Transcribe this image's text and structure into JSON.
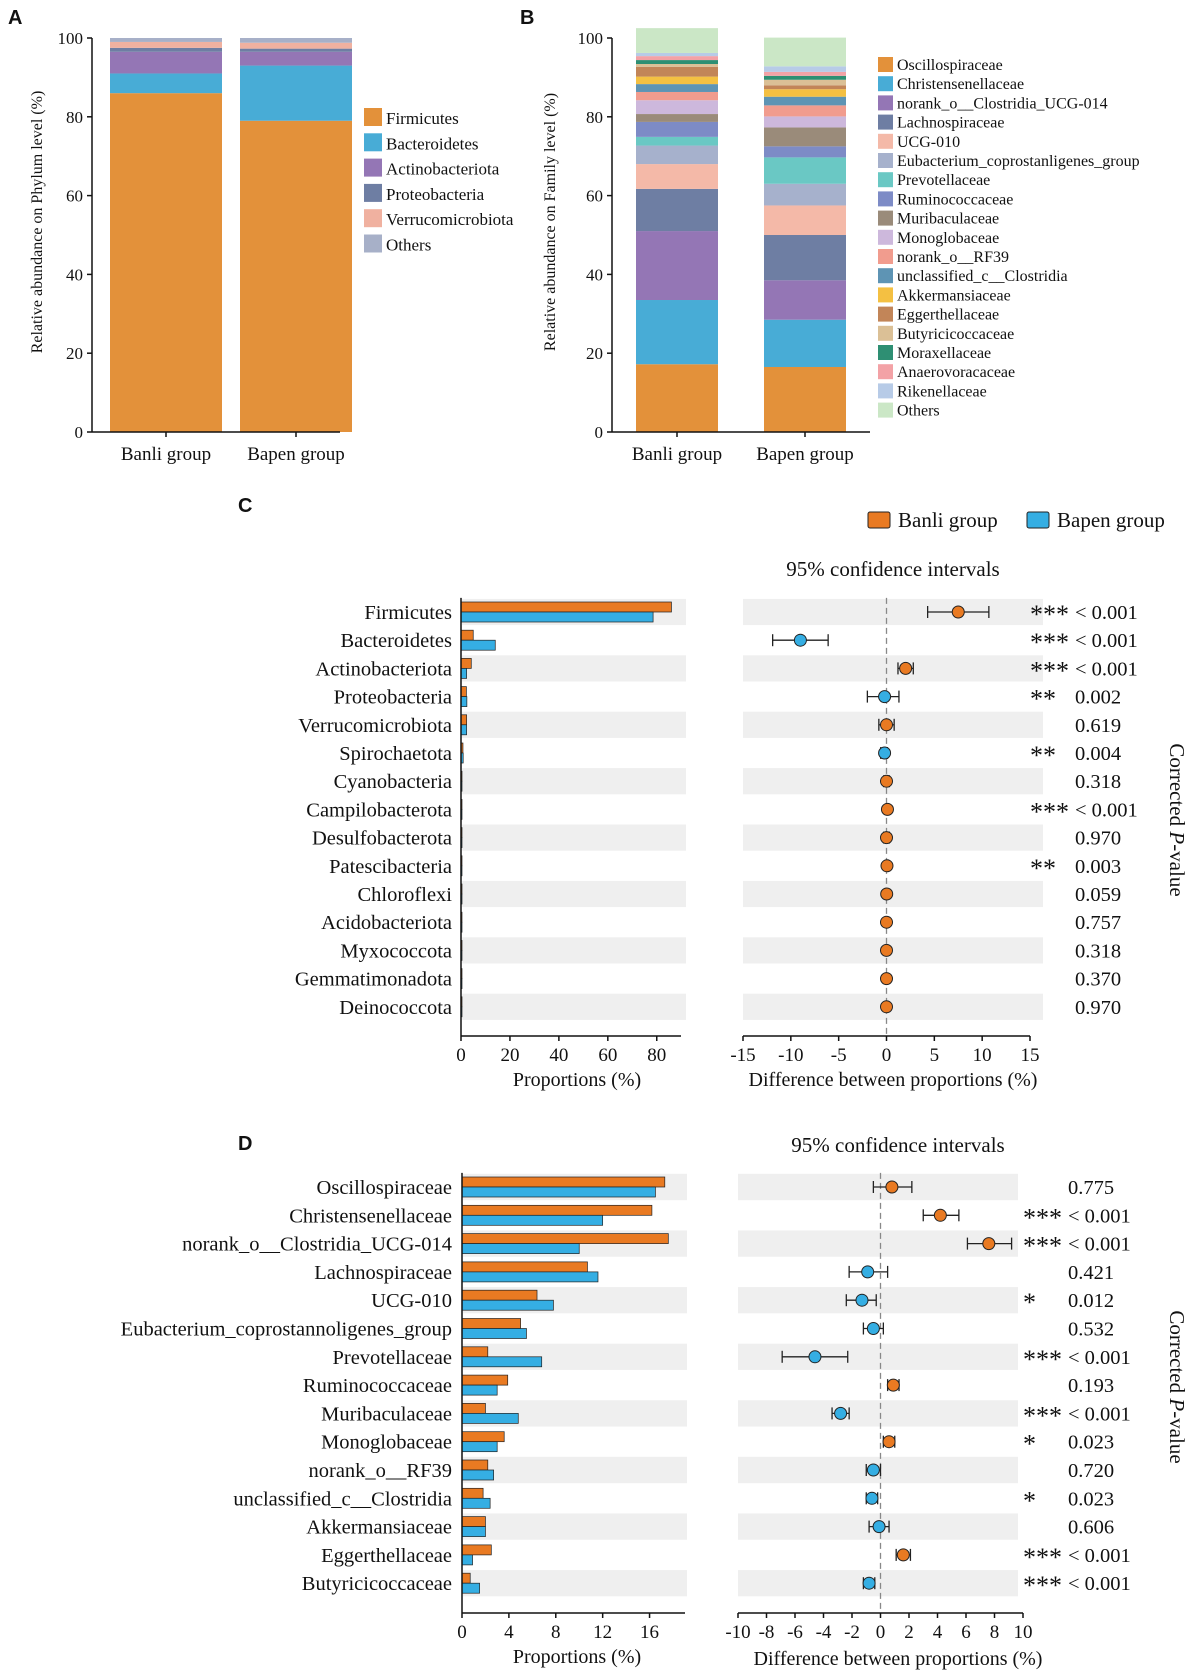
{
  "colors": {
    "banli": "#e97a22",
    "bapen": "#35aee3",
    "stars": "#e0202a",
    "band": "#efefef"
  },
  "chart_data": [
    {
      "panel": "A",
      "type": "bar",
      "stacked": true,
      "ylabel": "Relative abundance on Phylum level (%)",
      "ylim": [
        0,
        100
      ],
      "yticks": [
        "0",
        "20",
        "40",
        "60",
        "80",
        "100"
      ],
      "categories": [
        "Banli group",
        "Bapen group"
      ],
      "series": [
        {
          "name": "Firmicutes",
          "color": "#e3913a",
          "values": [
            86,
            79
          ]
        },
        {
          "name": "Bacteroidetes",
          "color": "#48acd6",
          "values": [
            5,
            14
          ]
        },
        {
          "name": "Actinobacteriota",
          "color": "#9476b5",
          "values": [
            5.5,
            3.5
          ]
        },
        {
          "name": "Proteobacteria",
          "color": "#6e7ea3",
          "values": [
            1,
            0.8
          ]
        },
        {
          "name": "Verrucomicrobiota",
          "color": "#f0b1a0",
          "values": [
            1.5,
            1.5
          ]
        },
        {
          "name": "Others",
          "color": "#a7b0c8",
          "values": [
            1,
            1.2
          ]
        }
      ],
      "legend_position": "right"
    },
    {
      "panel": "B",
      "type": "bar",
      "stacked": true,
      "ylabel": "Relative abundance on Family level (%)",
      "ylim": [
        0,
        100
      ],
      "yticks": [
        "0",
        "20",
        "40",
        "60",
        "80",
        "100"
      ],
      "categories": [
        "Banli group",
        "Bapen group"
      ],
      "series": [
        {
          "name": "Oscillospiraceae",
          "color": "#e3913a",
          "values": [
            17.2,
            16.5
          ]
        },
        {
          "name": "Christensenellaceae",
          "color": "#48acd6",
          "values": [
            16.3,
            12
          ]
        },
        {
          "name": "norank_o__Clostridia_UCG-014",
          "color": "#9476b5",
          "values": [
            17.5,
            10
          ]
        },
        {
          "name": "Lachnospiraceae",
          "color": "#6e7ea3",
          "values": [
            10.7,
            11.5
          ]
        },
        {
          "name": "UCG-010",
          "color": "#f4b9a8",
          "values": [
            6.3,
            7.5
          ]
        },
        {
          "name": "Eubacterium_coprostanligenes_group",
          "color": "#a6b1cc",
          "values": [
            4.7,
            5.5
          ]
        },
        {
          "name": "Prevotellaceae",
          "color": "#6ac8c4",
          "values": [
            2.2,
            6.7
          ]
        },
        {
          "name": "Ruminococcaceae",
          "color": "#7d8bc6",
          "values": [
            3.8,
            2.8
          ]
        },
        {
          "name": "Muribaculaceae",
          "color": "#9a8b7a",
          "values": [
            2,
            4.8
          ]
        },
        {
          "name": "Monoglobaceae",
          "color": "#cdb8dc",
          "values": [
            3.5,
            2.8
          ]
        },
        {
          "name": "norank_o__RF39",
          "color": "#f19c8e",
          "values": [
            2.1,
            2.8
          ]
        },
        {
          "name": "unclassified_c__Clostridia",
          "color": "#5e94b4",
          "values": [
            2,
            2.2
          ]
        },
        {
          "name": "Akkermansiaceae",
          "color": "#f4c042",
          "values": [
            1.9,
            1.9
          ]
        },
        {
          "name": "Eggerthellaceae",
          "color": "#c28558",
          "values": [
            2.5,
            1
          ]
        },
        {
          "name": "Butyricicoccaceae",
          "color": "#dbc096",
          "values": [
            0.7,
            1.4
          ]
        },
        {
          "name": "Moraxellaceae",
          "color": "#2e8f73",
          "values": [
            1,
            1
          ]
        },
        {
          "name": "Anaerovoracaceae",
          "color": "#f3a2a6",
          "values": [
            1,
            1
          ]
        },
        {
          "name": "Rikenellaceae",
          "color": "#b7cbe7",
          "values": [
            0.8,
            1.4
          ]
        },
        {
          "name": "Others",
          "color": "#cbe7c6",
          "values": [
            6.3,
            7.3
          ]
        }
      ],
      "legend_position": "right"
    },
    {
      "panel": "C",
      "type": "bar",
      "legend": [
        "Banli group",
        "Bapen group"
      ],
      "ci_title": "95% confidence intervals",
      "side_label": "Corrected P-value",
      "bar_xlabel": "Proportions (%)",
      "bar_xlim": [
        0,
        85
      ],
      "bar_xticks": [
        0,
        20,
        40,
        60,
        80
      ],
      "ci_xlabel": "Difference between proportions (%)",
      "ci_xlim": [
        -15,
        15
      ],
      "ci_xticks": [
        -15,
        -10,
        -5,
        0,
        5,
        10,
        15
      ],
      "taxa": [
        {
          "name": "Firmicutes",
          "banli": 86,
          "bapen": 78.5,
          "diff": 7.5,
          "lo": 4.3,
          "hi": 10.7,
          "stars": "***",
          "p": "< 0.001"
        },
        {
          "name": "Bacteroidetes",
          "banli": 5,
          "bapen": 14,
          "diff": -9,
          "lo": -11.9,
          "hi": -6.1,
          "stars": "***",
          "p": "< 0.001"
        },
        {
          "name": "Actinobacteriota",
          "banli": 4.2,
          "bapen": 2.3,
          "diff": 2,
          "lo": 1.2,
          "hi": 2.8,
          "stars": "***",
          "p": "< 0.001"
        },
        {
          "name": "Proteobacteria",
          "banli": 2.2,
          "bapen": 2.4,
          "diff": -0.2,
          "lo": -2,
          "hi": 1.3,
          "stars": "**",
          "p": "0.002"
        },
        {
          "name": "Verrucomicrobiota",
          "banli": 2.3,
          "bapen": 2.3,
          "diff": 0,
          "lo": -0.8,
          "hi": 0.8,
          "stars": "",
          "p": "0.619"
        },
        {
          "name": "Spirochaetota",
          "banli": 0.8,
          "bapen": 0.9,
          "diff": -0.2,
          "lo": -0.6,
          "hi": 0.1,
          "stars": "**",
          "p": "0.004"
        },
        {
          "name": "Cyanobacteria",
          "banli": 0.1,
          "bapen": 0.1,
          "diff": 0,
          "lo": -0.3,
          "hi": 0.3,
          "stars": "",
          "p": "0.318"
        },
        {
          "name": "Campilobacterota",
          "banli": 0.1,
          "bapen": 0.1,
          "diff": 0.1,
          "lo": -0.1,
          "hi": 0.3,
          "stars": "***",
          "p": "< 0.001"
        },
        {
          "name": "Desulfobacterota",
          "banli": 0.1,
          "bapen": 0.1,
          "diff": 0,
          "lo": -0.3,
          "hi": 0.3,
          "stars": "",
          "p": "0.970"
        },
        {
          "name": "Patescibacteria",
          "banli": 0.1,
          "bapen": 0.1,
          "diff": 0.05,
          "lo": -0.1,
          "hi": 0.2,
          "stars": "**",
          "p": "0.003"
        },
        {
          "name": "Chloroflexi",
          "banli": 0.1,
          "bapen": 0.1,
          "diff": 0.02,
          "lo": -0.1,
          "hi": 0.1,
          "stars": "",
          "p": "0.059"
        },
        {
          "name": "Acidobacteriota",
          "banli": 0.1,
          "bapen": 0.1,
          "diff": 0,
          "lo": -0.1,
          "hi": 0.1,
          "stars": "",
          "p": "0.757"
        },
        {
          "name": "Myxococcota",
          "banli": 0.1,
          "bapen": 0.1,
          "diff": 0,
          "lo": -0.1,
          "hi": 0.1,
          "stars": "",
          "p": "0.318"
        },
        {
          "name": "Gemmatimonadota",
          "banli": 0.1,
          "bapen": 0.1,
          "diff": 0,
          "lo": -0.1,
          "hi": 0.1,
          "stars": "",
          "p": "0.370"
        },
        {
          "name": "Deinococcota",
          "banli": 0.1,
          "bapen": 0.1,
          "diff": 0,
          "lo": -0.1,
          "hi": 0.1,
          "stars": "",
          "p": "0.970"
        }
      ]
    },
    {
      "panel": "D",
      "type": "bar",
      "ci_title": "95% confidence intervals",
      "side_label": "Corrected P-value",
      "bar_xlabel": "Proportions (%)",
      "bar_xlim": [
        0,
        18
      ],
      "bar_xticks": [
        0,
        4,
        8,
        12,
        16
      ],
      "ci_xlabel": "Difference between proportions (%)",
      "ci_xlim": [
        -10,
        10
      ],
      "ci_xticks": [
        -10,
        -8,
        -6,
        -4,
        -2,
        0,
        2,
        4,
        6,
        8,
        10
      ],
      "taxa": [
        {
          "name": "Oscillospiraceae",
          "banli": 17.3,
          "bapen": 16.5,
          "diff": 0.8,
          "lo": -0.5,
          "hi": 2.2,
          "stars": "",
          "p": "0.775"
        },
        {
          "name": "Christensenellaceae",
          "banli": 16.2,
          "bapen": 12,
          "diff": 4.2,
          "lo": 3,
          "hi": 5.5,
          "stars": "***",
          "p": "< 0.001"
        },
        {
          "name": "norank_o__Clostridia_UCG-014",
          "banli": 17.6,
          "bapen": 10,
          "diff": 7.6,
          "lo": 6.1,
          "hi": 9.2,
          "stars": "***",
          "p": "< 0.001"
        },
        {
          "name": "Lachnospiraceae",
          "banli": 10.7,
          "bapen": 11.6,
          "diff": -0.9,
          "lo": -2.2,
          "hi": 0.5,
          "stars": "",
          "p": "0.421"
        },
        {
          "name": "UCG-010",
          "banli": 6.4,
          "bapen": 7.8,
          "diff": -1.3,
          "lo": -2.4,
          "hi": -0.3,
          "stars": "*",
          "p": "0.012"
        },
        {
          "name": "Eubacterium_coprostannoligenes_group",
          "banli": 5,
          "bapen": 5.5,
          "diff": -0.5,
          "lo": -1.2,
          "hi": 0.2,
          "stars": "",
          "p": "0.532"
        },
        {
          "name": "Prevotellaceae",
          "banli": 2.2,
          "bapen": 6.8,
          "diff": -4.6,
          "lo": -6.9,
          "hi": -2.3,
          "stars": "***",
          "p": "< 0.001"
        },
        {
          "name": "Ruminococcaceae",
          "banli": 3.9,
          "bapen": 3,
          "diff": 0.9,
          "lo": 0.5,
          "hi": 1.3,
          "stars": "",
          "p": "0.193"
        },
        {
          "name": "Muribaculaceae",
          "banli": 2,
          "bapen": 4.8,
          "diff": -2.8,
          "lo": -3.4,
          "hi": -2.2,
          "stars": "***",
          "p": "< 0.001"
        },
        {
          "name": "Monoglobaceae",
          "banli": 3.6,
          "bapen": 3,
          "diff": 0.6,
          "lo": 0.2,
          "hi": 1,
          "stars": "*",
          "p": "0.023"
        },
        {
          "name": "norank_o__RF39",
          "banli": 2.2,
          "bapen": 2.7,
          "diff": -0.5,
          "lo": -1,
          "hi": 0,
          "stars": "",
          "p": "0.720"
        },
        {
          "name": "unclassified_c__Clostridia",
          "banli": 1.8,
          "bapen": 2.4,
          "diff": -0.6,
          "lo": -1,
          "hi": -0.2,
          "stars": "*",
          "p": "0.023"
        },
        {
          "name": "Akkermansiaceae",
          "banli": 2,
          "bapen": 2,
          "diff": -0.1,
          "lo": -0.8,
          "hi": 0.6,
          "stars": "",
          "p": "0.606"
        },
        {
          "name": "Eggerthellaceae",
          "banli": 2.5,
          "bapen": 0.9,
          "diff": 1.6,
          "lo": 1.1,
          "hi": 2.1,
          "stars": "***",
          "p": "< 0.001"
        },
        {
          "name": "Butyricicoccaceae",
          "banli": 0.7,
          "bapen": 1.5,
          "diff": -0.8,
          "lo": -1.2,
          "hi": -0.4,
          "stars": "***",
          "p": "< 0.001"
        }
      ]
    }
  ]
}
